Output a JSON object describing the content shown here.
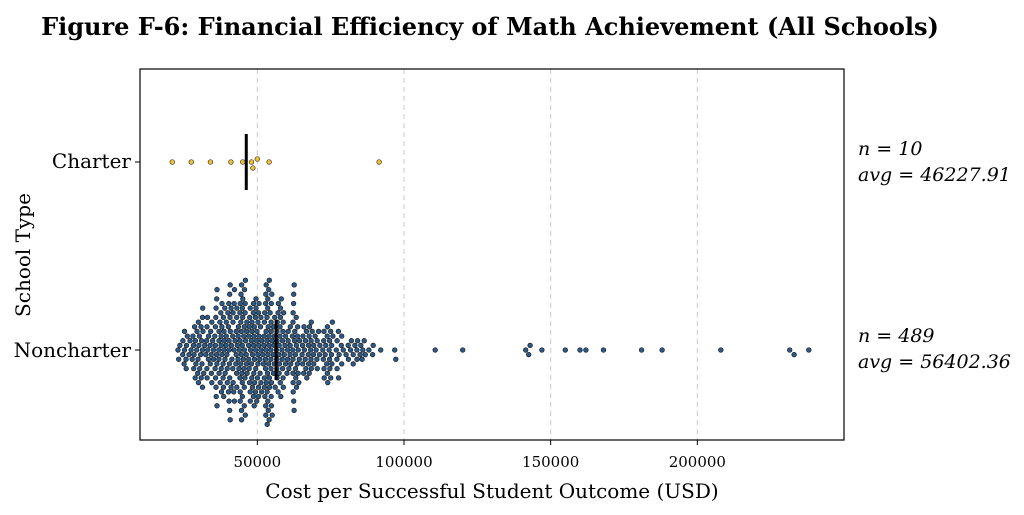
{
  "chart_data": {
    "type": "scatter",
    "subtype": "swarm",
    "title": "Figure F-6: Financial Efficiency of Math Achievement (All Schools)",
    "xlabel": "Cost per Successful Student Outcome (USD)",
    "ylabel": "School Type",
    "xlim": [
      10000,
      250000
    ],
    "xticks": [
      50000,
      100000,
      150000,
      200000
    ],
    "xtick_labels": [
      "50000",
      "100000",
      "150000",
      "200000"
    ],
    "grid": "vertical dashed",
    "categories": [
      "Charter",
      "Noncharter"
    ],
    "series": [
      {
        "name": "Charter",
        "color": "#f2c12e",
        "n_label": "n = 10",
        "avg_label": "avg = 46227.91",
        "mean": 46227.91,
        "values": [
          21000,
          27500,
          34000,
          41000,
          45000,
          48000,
          48500,
          50000,
          54000,
          91500
        ]
      },
      {
        "name": "Noncharter",
        "color": "#2a5a8a",
        "n_label": "n = 489",
        "avg_label": "avg = 56402.36",
        "mean": 56402.36,
        "summary": {
          "min": 21000,
          "q1": 38000,
          "median": 47000,
          "q3": 58000,
          "max": 238000
        },
        "outliers": [
          120000,
          141500,
          142500,
          143000,
          147000,
          155000,
          160000,
          162000,
          168000,
          181000,
          188000,
          208000,
          231500,
          233000,
          238000
        ]
      }
    ],
    "colors": {
      "charter": "#f2c12e",
      "noncharter": "#2a5a8a",
      "mean_line": "#000000",
      "grid": "#cccccc"
    }
  }
}
